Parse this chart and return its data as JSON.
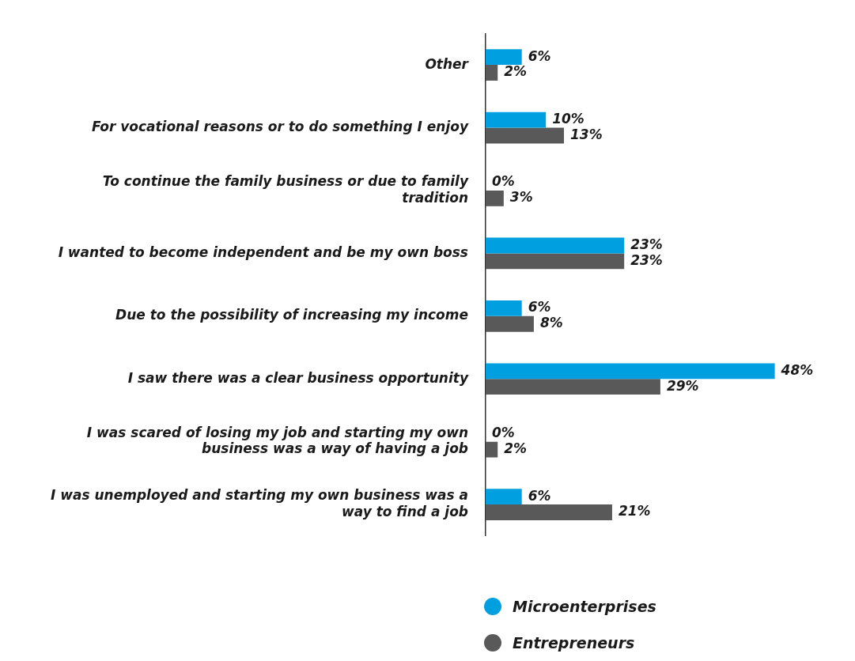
{
  "chart_data": {
    "type": "bar",
    "orientation": "horizontal",
    "legend": "bottom",
    "tick_labels": "y",
    "categories": [
      "Other",
      "For vocational reasons or to do something I enjoy",
      "To continue the family business or due to family tradition",
      "I wanted to become independent and be my own boss",
      "Due to the possibility of increasing my income",
      "I saw there was a clear business opportunity",
      "I was scared of losing my job and starting my own business was a way of having a job",
      "I was unemployed and starting my own business was a way to find a job"
    ],
    "series": [
      {
        "name": "Microenterprises",
        "color": "#009fdf",
        "values": [
          6,
          10,
          0,
          23,
          6,
          48,
          0,
          6
        ],
        "value_labels": [
          "6%",
          "10%",
          "0%",
          "23%",
          "6%",
          "48%",
          "0%",
          "6%"
        ]
      },
      {
        "name": "Entrepreneurs",
        "color": "#595959",
        "values": [
          2,
          13,
          3,
          23,
          8,
          29,
          2,
          21
        ],
        "value_labels": [
          "2%",
          "13%",
          "3%",
          "23%",
          "8%",
          "29%",
          "2%",
          "21%"
        ]
      }
    ]
  }
}
